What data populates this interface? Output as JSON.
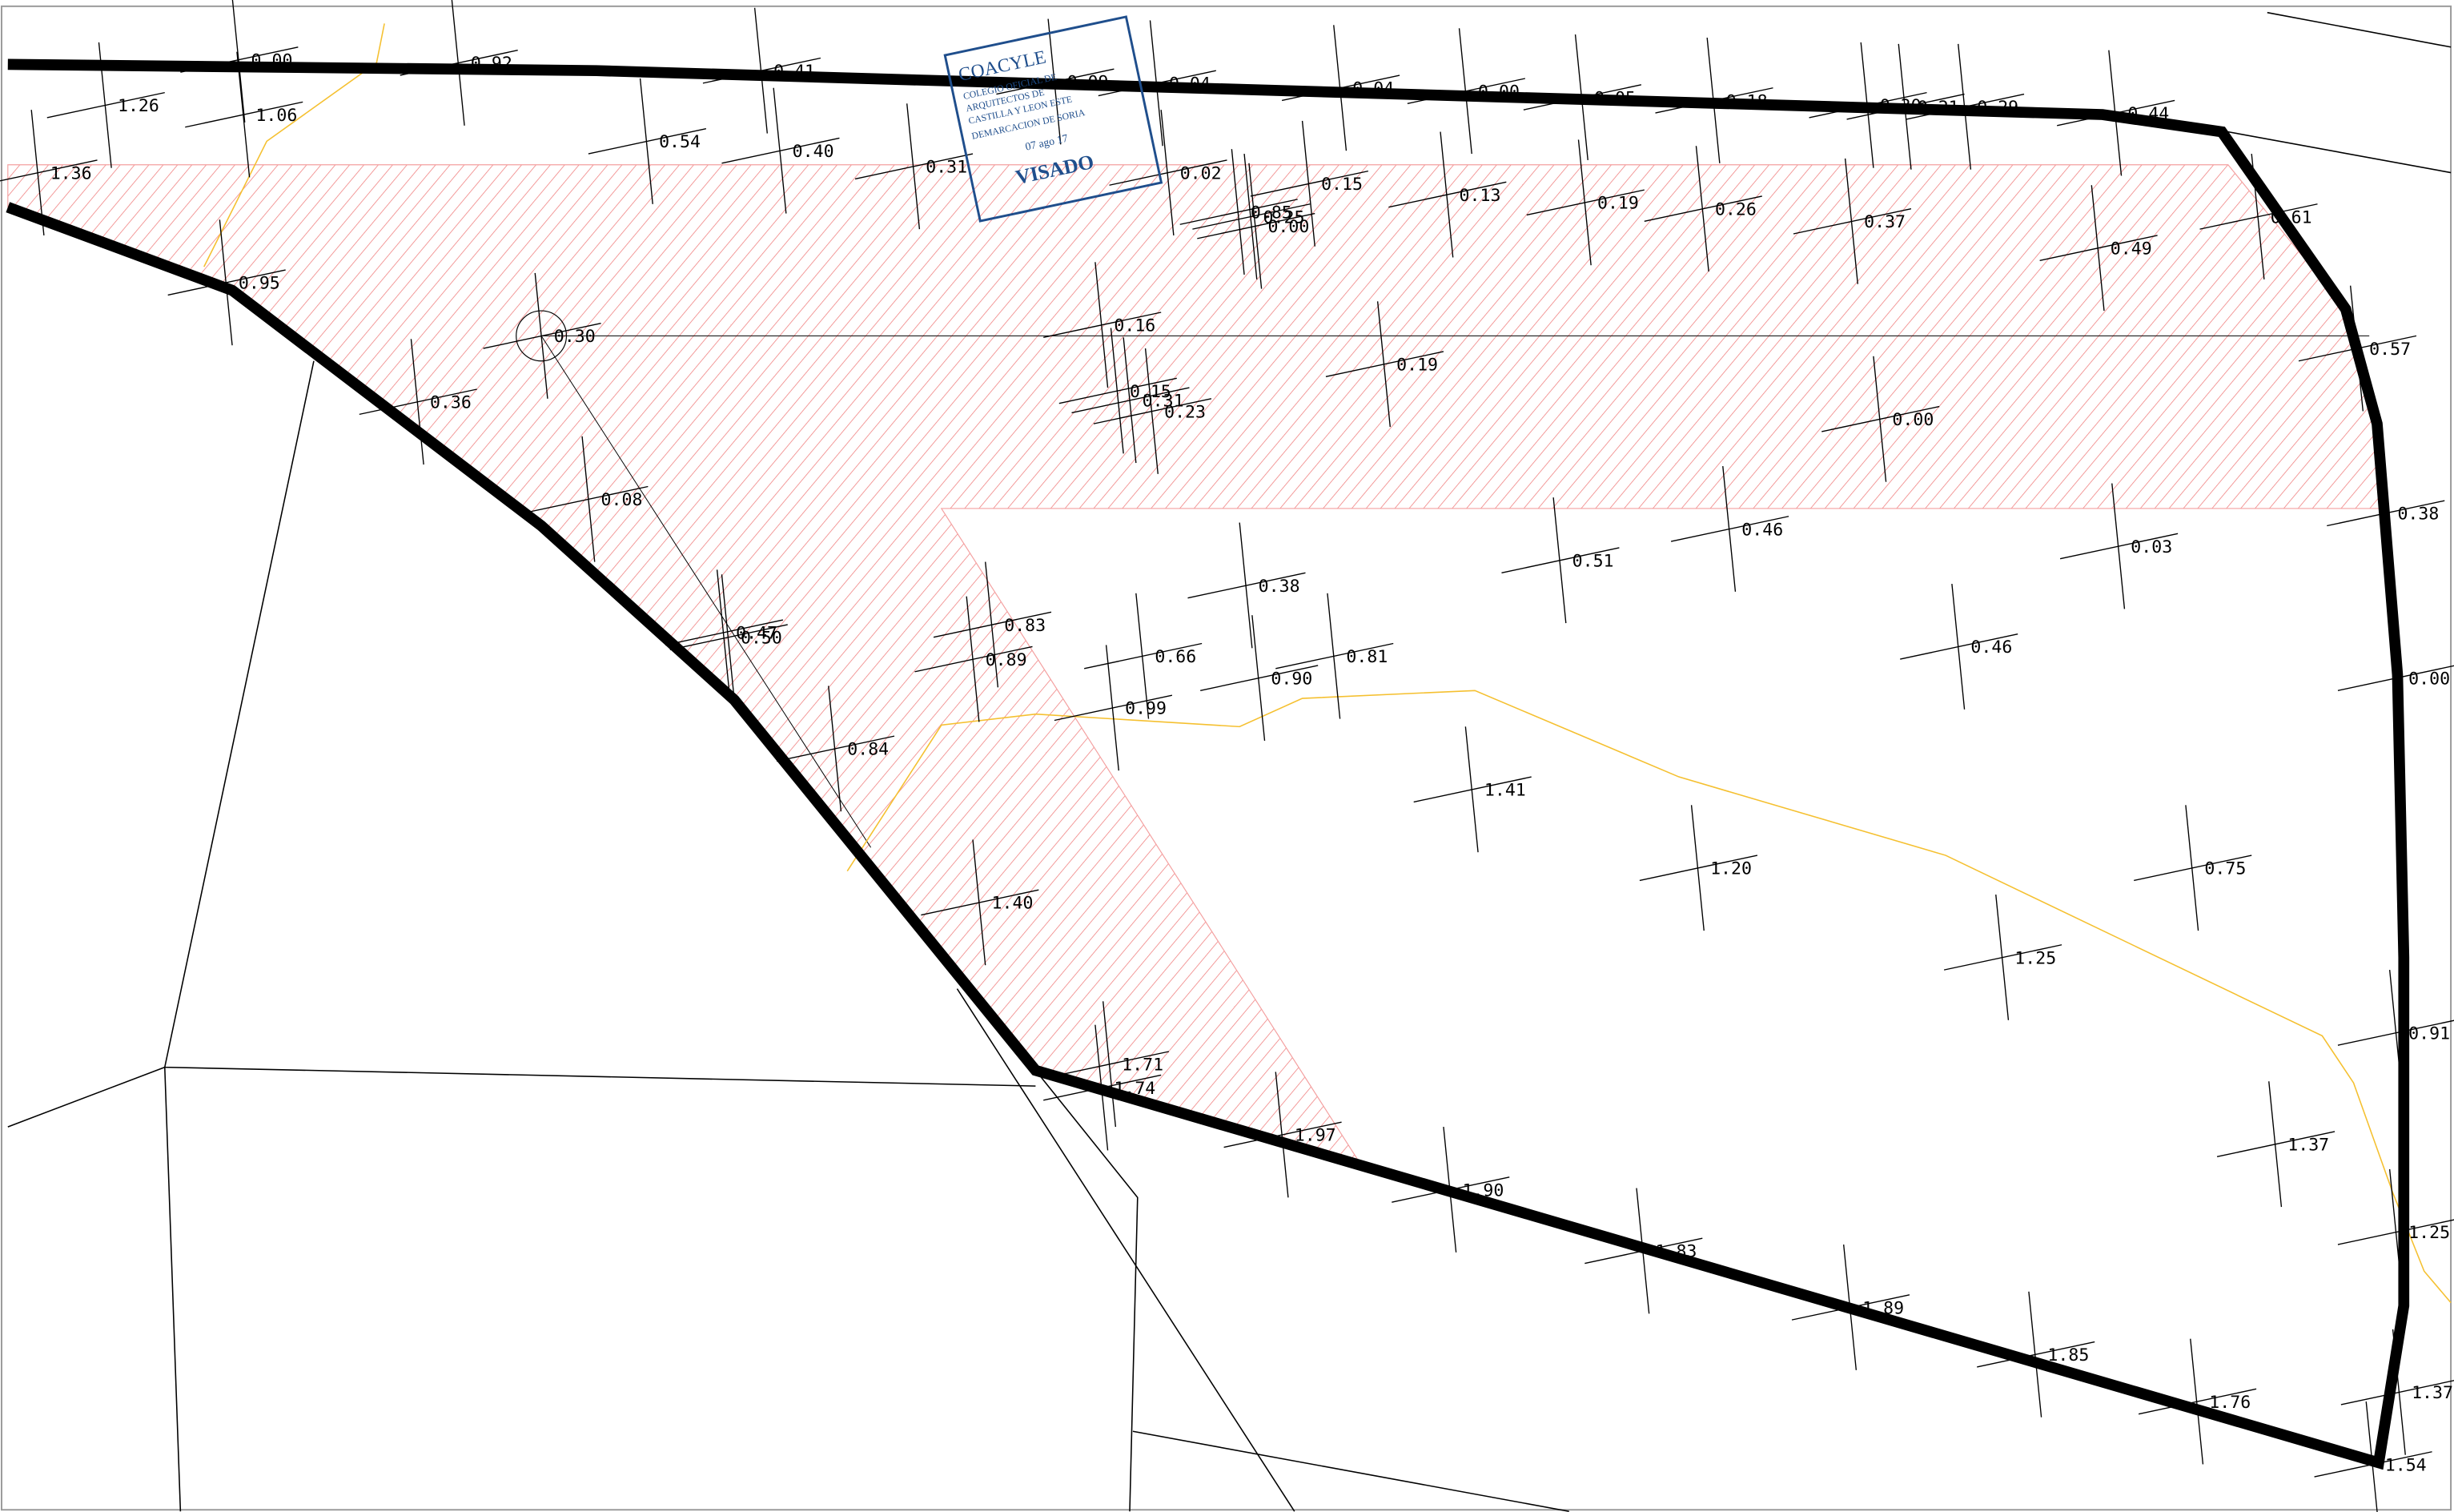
{
  "stamp": {
    "org": "COACYLE",
    "line1": "COLEGIO OFICIAL DE",
    "line2": "ARQUITECTOS DE",
    "line3": "CASTILLA Y LEON ESTE",
    "line4": "DEMARCACION DE SORIA",
    "date": "07 ago 17",
    "status": "VISADO"
  },
  "elevations": [
    "0.00",
    "1.26",
    "1.06",
    "1.36",
    "0.92",
    "0.41",
    "0.54",
    "0.40",
    "0.31",
    "0.09",
    "0.04",
    "0.04",
    "0.00",
    "0.05",
    "0.18",
    "0.30",
    "0.21",
    "0.29",
    "0.44",
    "0.02",
    "0.15",
    "0.13",
    "0.19",
    "0.26",
    "0.37",
    "0.49",
    "0.61",
    "0.85",
    "0.25",
    "0.00",
    "0.95",
    "0.30",
    "0.16",
    "0.19",
    "0.57",
    "0.36",
    "0.15",
    "0.31",
    "0.23",
    "0.00",
    "0.08",
    "0.38",
    "0.51",
    "0.46",
    "0.03",
    "0.38",
    "0.83",
    "0.47",
    "0.50",
    "0.89",
    "0.66",
    "0.81",
    "0.90",
    "0.46",
    "0.00",
    "0.99",
    "0.84",
    "1.41",
    "1.20",
    "0.75",
    "1.40",
    "1.25",
    "0.91",
    "1.71",
    "1.74",
    "1.97",
    "1.37",
    "1.90",
    "1.25",
    "1.83",
    "1.89",
    "1.85",
    "1.76",
    "1.37",
    "1.54"
  ]
}
